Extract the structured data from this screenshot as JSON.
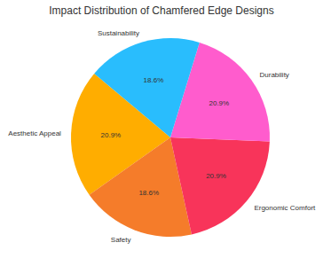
{
  "chart_data": {
    "type": "pie",
    "title": "Impact Distribution of Chamfered Edge Designs",
    "categories": [
      "Aesthetic Appeal",
      "Safety",
      "Ergonomic Comfort",
      "Durability",
      "Sustainability"
    ],
    "values": [
      20.9,
      18.6,
      20.9,
      20.9,
      18.6
    ],
    "value_labels": [
      "20.9%",
      "18.6%",
      "20.9%",
      "20.9%",
      "18.6%"
    ],
    "colors": [
      "#ffad00",
      "#f57c2a",
      "#f8345a",
      "#ff5ccd",
      "#29bdfd"
    ],
    "data_labels": true
  }
}
